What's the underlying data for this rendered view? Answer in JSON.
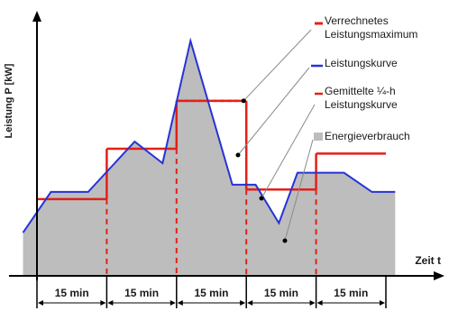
{
  "chart_data": {
    "type": "area",
    "ylabel": "Leistung P [kW]",
    "xlabel": "Zeit t",
    "interval_label": "15 min",
    "xlim": [
      0,
      75
    ],
    "ylim": [
      0,
      100
    ],
    "legend_position": "right",
    "colors": {
      "power_curve": "#2633d6",
      "averaged_curve": "#e32017",
      "max_line": "#e32017",
      "energy_fill": "#bdbdbd",
      "axis": "#000000",
      "leader": "#8a8a8a"
    },
    "series": [
      {
        "name": "Leistungskurve",
        "x": [
          -3,
          3,
          11,
          21,
          27,
          33,
          42,
          47,
          52,
          56,
          66,
          72,
          77
        ],
        "y": [
          18,
          35,
          35,
          56,
          47,
          98,
          38,
          38,
          22,
          43,
          43,
          35,
          35
        ]
      },
      {
        "name": "Gemittelte ¼-h Leistungskurve",
        "x": [
          0,
          15,
          30,
          45,
          60,
          75
        ],
        "y": [
          32,
          53,
          73,
          36,
          51,
          51
        ]
      },
      {
        "name": "Verrechnetes Leistungsmaximum",
        "value": 73
      }
    ],
    "legend": [
      {
        "key": "max",
        "label": "Verrechnetes\nLeistungsmaximum"
      },
      {
        "key": "curve",
        "label": "Leistungskurve"
      },
      {
        "key": "avg",
        "label": "Gemittelte ¼-h\nLeistungskurve"
      },
      {
        "key": "energy",
        "label": "Energieverbrauch"
      }
    ]
  }
}
